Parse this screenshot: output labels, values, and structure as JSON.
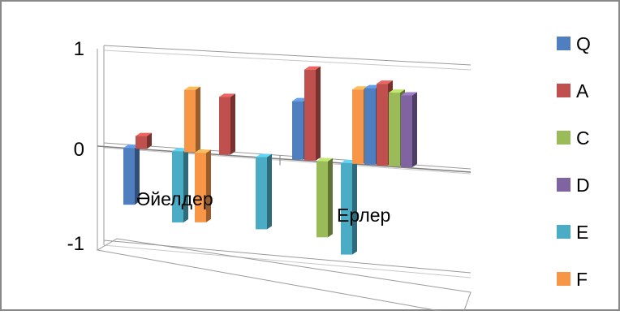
{
  "chart_data": {
    "type": "bar",
    "view": "3d-clustered-column",
    "categories": [
      "Әйелдер",
      "Ерлер"
    ],
    "yticks": [
      "1",
      "0",
      "-1"
    ],
    "ylim": [
      -1,
      1
    ],
    "grid": true,
    "legend_position": "right",
    "series": [
      {
        "name": "Q",
        "color": "#4F7FBF",
        "values": [
          -0.58,
          0.58
        ]
      },
      {
        "name": "A",
        "color": "#C0504D",
        "values": [
          0.13,
          0.9
        ]
      },
      {
        "name": "C",
        "color": "#9BBB59",
        "values": [
          0.0,
          -0.75
        ]
      },
      {
        "name": "D",
        "color": "#8064A2",
        "values": [
          0.0,
          0.0
        ]
      },
      {
        "name": "E",
        "color": "#4BACC6",
        "values": [
          -0.72,
          -0.9
        ]
      },
      {
        "name": "F",
        "color": "#F79646",
        "values": [
          0.63,
          0.0
        ]
      }
    ],
    "second_group": [
      {
        "name": "F",
        "color": "#F79646",
        "values": [
          -0.7,
          0.73
        ]
      },
      {
        "name": "Q",
        "color": "#4F7FBF",
        "values": [
          0.0,
          0.75
        ]
      },
      {
        "name": "A",
        "color": "#C0504D",
        "values": [
          0.58,
          0.8
        ]
      },
      {
        "name": "C",
        "color": "#9BBB59",
        "values": [
          0.0,
          0.72
        ]
      },
      {
        "name": "D",
        "color": "#8064A2",
        "values": [
          0.0,
          0.7
        ]
      },
      {
        "name": "E",
        "color": "#4BACC6",
        "values": [
          -0.72,
          0.0
        ]
      }
    ]
  }
}
